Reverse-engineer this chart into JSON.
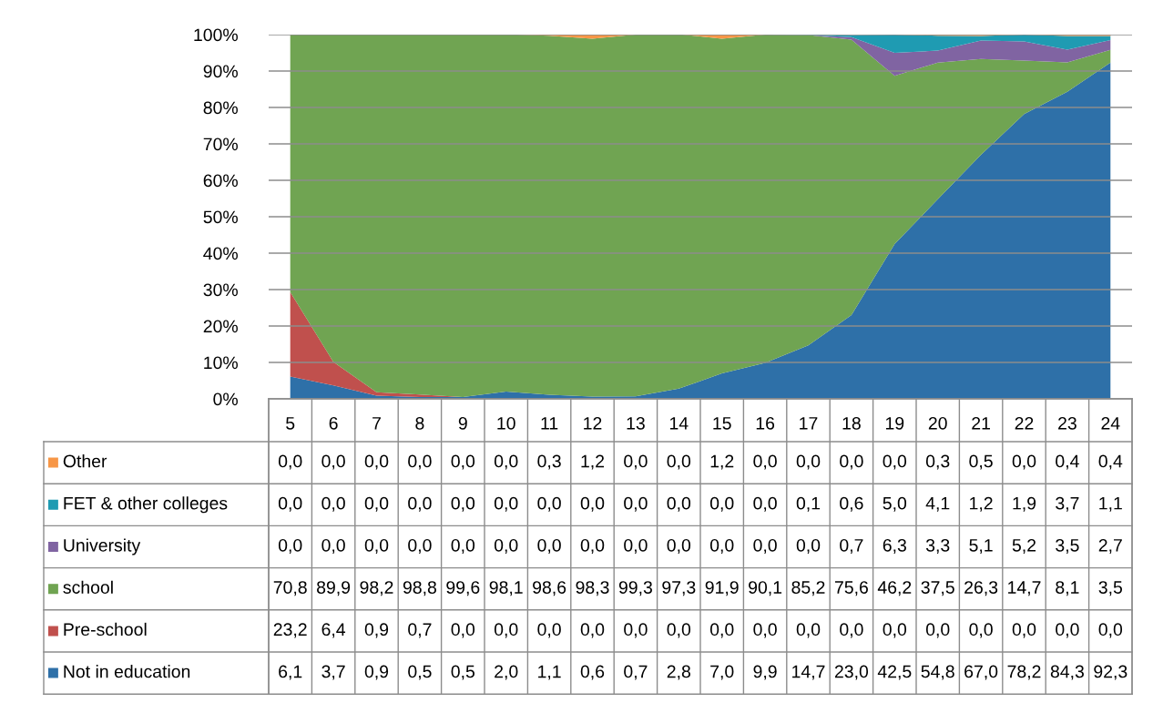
{
  "chart_data": {
    "type": "area",
    "stacked": true,
    "categories": [
      "5",
      "6",
      "7",
      "8",
      "9",
      "10",
      "11",
      "12",
      "13",
      "14",
      "15",
      "16",
      "17",
      "18",
      "19",
      "20",
      "21",
      "22",
      "23",
      "24"
    ],
    "ylim": [
      0,
      100
    ],
    "yticks": [
      {
        "value": 0,
        "label": "0%"
      },
      {
        "value": 10,
        "label": "10%"
      },
      {
        "value": 20,
        "label": "20%"
      },
      {
        "value": 30,
        "label": "30%"
      },
      {
        "value": 40,
        "label": "40%"
      },
      {
        "value": 50,
        "label": "50%"
      },
      {
        "value": 60,
        "label": "60%"
      },
      {
        "value": 70,
        "label": "70%"
      },
      {
        "value": 80,
        "label": "80%"
      },
      {
        "value": 90,
        "label": "90%"
      },
      {
        "value": 100,
        "label": "100%"
      }
    ],
    "grid": "y",
    "legend": "bottom left",
    "series": [
      {
        "name": "Not in education",
        "color": "#2e70a8",
        "values": [
          6.1,
          3.7,
          0.9,
          0.5,
          0.5,
          2.0,
          1.1,
          0.6,
          0.7,
          2.8,
          7.0,
          9.9,
          14.7,
          23.0,
          42.5,
          54.8,
          67.0,
          78.2,
          84.3,
          92.3
        ],
        "value_labels": [
          "6,1",
          "3,7",
          "0,9",
          "0,5",
          "0,5",
          "2,0",
          "1,1",
          "0,6",
          "0,7",
          "2,8",
          "7,0",
          "9,9",
          "14,7",
          "23,0",
          "42,5",
          "54,8",
          "67,0",
          "78,2",
          "84,3",
          "92,3"
        ]
      },
      {
        "name": "Pre-school",
        "color": "#c0504d",
        "values": [
          23.2,
          6.4,
          0.9,
          0.7,
          0.0,
          0.0,
          0.0,
          0.0,
          0.0,
          0.0,
          0.0,
          0.0,
          0.0,
          0.0,
          0.0,
          0.0,
          0.0,
          0.0,
          0.0,
          0.0
        ],
        "value_labels": [
          "23,2",
          "6,4",
          "0,9",
          "0,7",
          "0,0",
          "0,0",
          "0,0",
          "0,0",
          "0,0",
          "0,0",
          "0,0",
          "0,0",
          "0,0",
          "0,0",
          "0,0",
          "0,0",
          "0,0",
          "0,0",
          "0,0",
          "0,0"
        ]
      },
      {
        "name": "school",
        "color": "#70a452",
        "values": [
          70.8,
          89.9,
          98.2,
          98.8,
          99.6,
          98.1,
          98.6,
          98.3,
          99.3,
          97.3,
          91.9,
          90.1,
          85.2,
          75.6,
          46.2,
          37.5,
          26.3,
          14.7,
          8.1,
          3.5
        ],
        "value_labels": [
          "70,8",
          "89,9",
          "98,2",
          "98,8",
          "99,6",
          "98,1",
          "98,6",
          "98,3",
          "99,3",
          "97,3",
          "91,9",
          "90,1",
          "85,2",
          "75,6",
          "46,2",
          "37,5",
          "26,3",
          "14,7",
          "8,1",
          "3,5"
        ]
      },
      {
        "name": "University",
        "color": "#8064a2",
        "values": [
          0.0,
          0.0,
          0.0,
          0.0,
          0.0,
          0.0,
          0.0,
          0.0,
          0.0,
          0.0,
          0.0,
          0.0,
          0.0,
          0.7,
          6.3,
          3.3,
          5.1,
          5.2,
          3.5,
          2.7
        ],
        "value_labels": [
          "0,0",
          "0,0",
          "0,0",
          "0,0",
          "0,0",
          "0,0",
          "0,0",
          "0,0",
          "0,0",
          "0,0",
          "0,0",
          "0,0",
          "0,0",
          "0,7",
          "6,3",
          "3,3",
          "5,1",
          "5,2",
          "3,5",
          "2,7"
        ]
      },
      {
        "name": "FET & other colleges",
        "color": "#1f9bb2",
        "values": [
          0.0,
          0.0,
          0.0,
          0.0,
          0.0,
          0.0,
          0.0,
          0.0,
          0.0,
          0.0,
          0.0,
          0.0,
          0.1,
          0.6,
          5.0,
          4.1,
          1.2,
          1.9,
          3.7,
          1.1
        ],
        "value_labels": [
          "0,0",
          "0,0",
          "0,0",
          "0,0",
          "0,0",
          "0,0",
          "0,0",
          "0,0",
          "0,0",
          "0,0",
          "0,0",
          "0,0",
          "0,1",
          "0,6",
          "5,0",
          "4,1",
          "1,2",
          "1,9",
          "3,7",
          "1,1"
        ]
      },
      {
        "name": "Other",
        "color": "#f79646",
        "values": [
          0.0,
          0.0,
          0.0,
          0.0,
          0.0,
          0.0,
          0.3,
          1.2,
          0.0,
          0.0,
          1.2,
          0.0,
          0.0,
          0.0,
          0.0,
          0.3,
          0.5,
          0.0,
          0.4,
          0.4
        ],
        "value_labels": [
          "0,0",
          "0,0",
          "0,0",
          "0,0",
          "0,0",
          "0,0",
          "0,3",
          "1,2",
          "0,0",
          "0,0",
          "1,2",
          "0,0",
          "0,0",
          "0,0",
          "0,0",
          "0,3",
          "0,5",
          "0,0",
          "0,4",
          "0,4"
        ]
      }
    ]
  }
}
